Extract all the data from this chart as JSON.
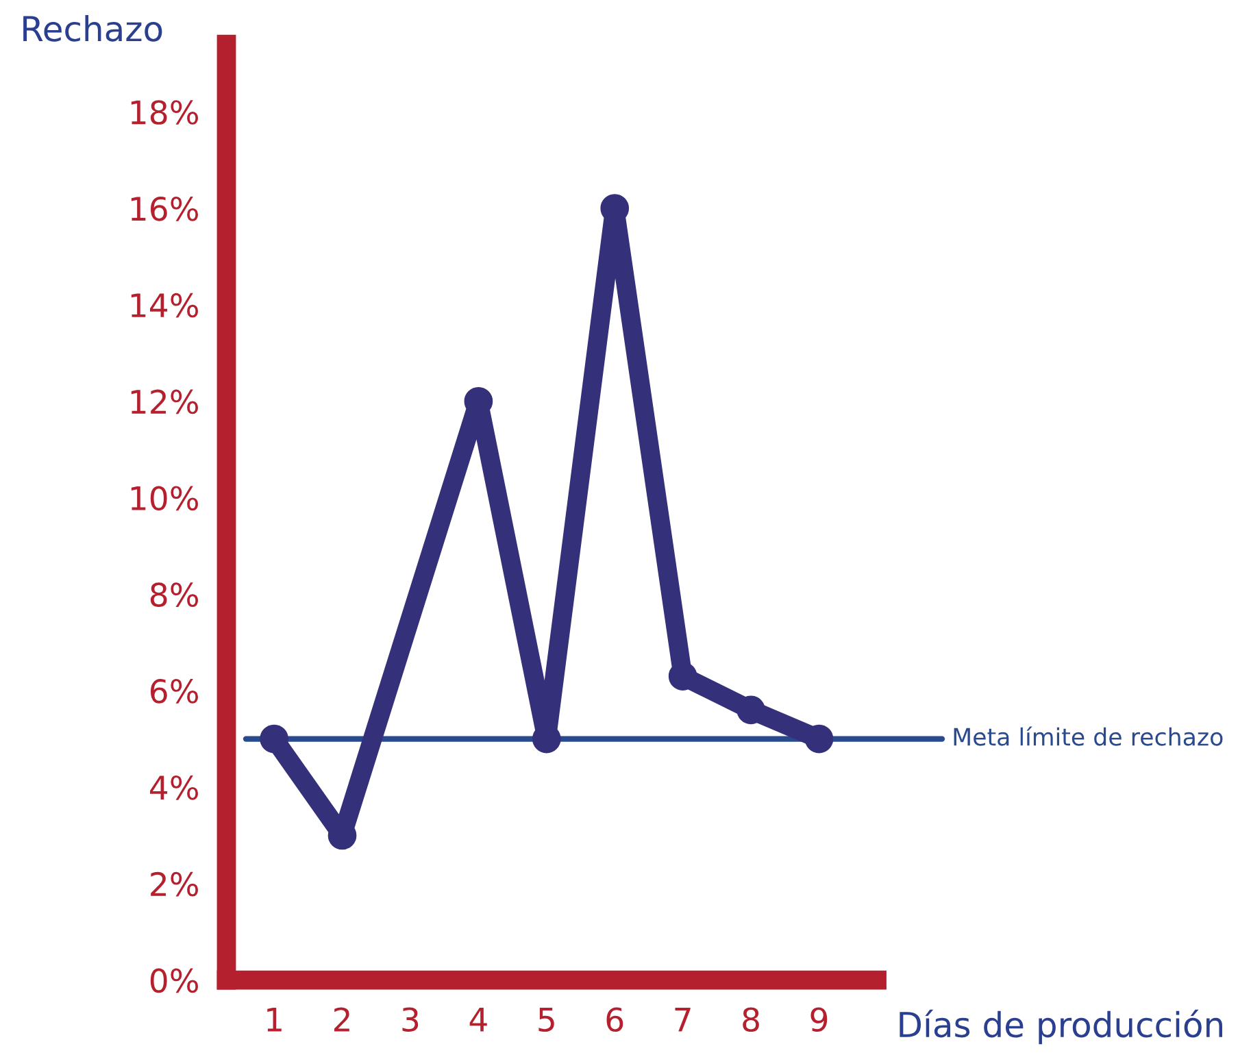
{
  "chart_data": {
    "type": "line",
    "xlabel": "Días de producción",
    "ylabel": "Rechazo",
    "x": [
      1,
      2,
      4,
      5,
      6,
      7,
      8,
      9
    ],
    "series": [
      {
        "color": "#35307a",
        "values": [
          5,
          3,
          12,
          5,
          16,
          6.3,
          5.6,
          5
        ]
      }
    ],
    "marker": "circle",
    "line_style": "solid",
    "xlim": [
      0.3,
      9.85
    ],
    "xticks": [
      1,
      2,
      3,
      4,
      5,
      6,
      7,
      8,
      9
    ],
    "ylim": [
      0,
      19.4
    ],
    "yticks": [
      {
        "value": 0,
        "label": "0%"
      },
      {
        "value": 2,
        "label": "2%"
      },
      {
        "value": 4,
        "label": "4%"
      },
      {
        "value": 6,
        "label": "6%"
      },
      {
        "value": 8,
        "label": "8%"
      },
      {
        "value": 10,
        "label": "10%"
      },
      {
        "value": 12,
        "label": "12%"
      },
      {
        "value": 14,
        "label": "14%"
      },
      {
        "value": 16,
        "label": "16%"
      },
      {
        "value": 18,
        "label": "18%"
      }
    ],
    "ref_lines": [
      {
        "axis": "y",
        "value": 5,
        "label": "Meta límite de rechazo",
        "color": "#2a4a8f",
        "line_style": "solid"
      }
    ],
    "grid": false,
    "legend": false
  }
}
